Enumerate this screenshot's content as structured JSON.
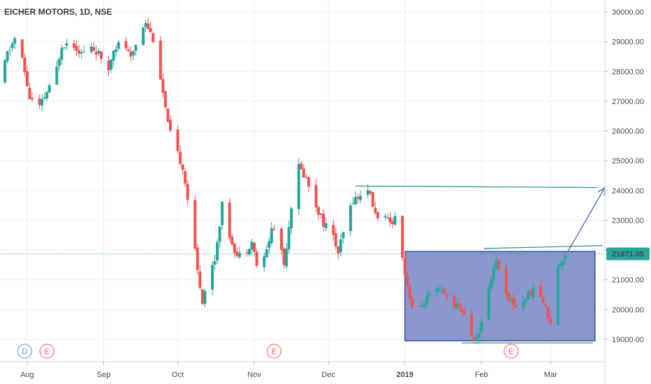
{
  "title": "EICHER MOTORS, 1D, NSE",
  "colors": {
    "up": "#26a69a",
    "down": "#ef5350",
    "box_fill": "#5b6fb8",
    "box_stroke": "#1f2f8f",
    "trend": "#2e9c8f",
    "arrow": "#5a78b8",
    "price_line": "#2e9c8f",
    "grid": "#eef0f3",
    "axis_text": "#4a4a4a",
    "badge_dividend": "#4a90c2",
    "badge_earnings": "#e85a5a"
  },
  "price_label": {
    "text": "21871.05",
    "value": 21871.05
  },
  "badges": [
    {
      "letter": "D",
      "type": "dividend",
      "date": "2018-07-31"
    },
    {
      "letter": "E",
      "type": "earnings",
      "date": "2018-08-09"
    },
    {
      "letter": "E",
      "type": "earnings",
      "date": "2018-11-09"
    },
    {
      "letter": "E",
      "type": "earnings",
      "date": "2019-02-13"
    }
  ],
  "chart_data": {
    "type": "candlestick",
    "title": "EICHER MOTORS, 1D, NSE",
    "ylim": [
      18300,
      30400
    ],
    "yticks": [
      19000,
      20000,
      21000,
      22000,
      23000,
      24000,
      25000,
      26000,
      27000,
      28000,
      29000,
      30000
    ],
    "ytick_labels": [
      "19000.00",
      "20000.00",
      "21000.00",
      "22000.00",
      "23000.00",
      "24000.00",
      "25000.00",
      "26000.00",
      "27000.00",
      "28000.00",
      "29000.00",
      "30000.00"
    ],
    "xlim": [
      "2018-07-21",
      "2019-03-23"
    ],
    "x_ticks": [
      {
        "date": "2018-08-01",
        "label": "Aug",
        "bold": false
      },
      {
        "date": "2018-09-01",
        "label": "Sep",
        "bold": false
      },
      {
        "date": "2018-10-01",
        "label": "Oct",
        "bold": false
      },
      {
        "date": "2018-11-01",
        "label": "Nov",
        "bold": false
      },
      {
        "date": "2018-12-01",
        "label": "Dec",
        "bold": false
      },
      {
        "date": "2019-01-01",
        "label": "2019",
        "bold": true
      },
      {
        "date": "2019-02-01",
        "label": "Feb",
        "bold": false
      },
      {
        "date": "2019-03-01",
        "label": "Mar",
        "bold": false
      }
    ],
    "last_price": 21871.05,
    "anchors": [
      [
        "2018-07-21",
        27600
      ],
      [
        "2018-07-24",
        28600
      ],
      [
        "2018-07-27",
        29100
      ],
      [
        "2018-07-30",
        28400
      ],
      [
        "2018-08-02",
        27100
      ],
      [
        "2018-08-06",
        26800
      ],
      [
        "2018-08-09",
        27300
      ],
      [
        "2018-08-12",
        27700
      ],
      [
        "2018-08-15",
        28900
      ],
      [
        "2018-08-19",
        29000
      ],
      [
        "2018-08-23",
        28600
      ],
      [
        "2018-08-27",
        28800
      ],
      [
        "2018-08-30",
        28600
      ],
      [
        "2018-09-02",
        27700
      ],
      [
        "2018-09-05",
        28800
      ],
      [
        "2018-09-09",
        29000
      ],
      [
        "2018-09-12",
        28400
      ],
      [
        "2018-09-15",
        29200
      ],
      [
        "2018-09-18",
        29700
      ],
      [
        "2018-09-21",
        29100
      ],
      [
        "2018-09-24",
        27800
      ],
      [
        "2018-09-27",
        26200
      ],
      [
        "2018-09-30",
        25400
      ],
      [
        "2018-10-03",
        24800
      ],
      [
        "2018-10-06",
        23200
      ],
      [
        "2018-10-09",
        21300
      ],
      [
        "2018-10-11",
        20300
      ],
      [
        "2018-10-13",
        21000
      ],
      [
        "2018-10-16",
        21700
      ],
      [
        "2018-10-19",
        23500
      ],
      [
        "2018-10-22",
        22500
      ],
      [
        "2018-10-25",
        21800
      ],
      [
        "2018-10-28",
        21900
      ],
      [
        "2018-10-31",
        22300
      ],
      [
        "2018-11-03",
        21100
      ],
      [
        "2018-11-06",
        22000
      ],
      [
        "2018-11-08",
        22700
      ],
      [
        "2018-11-11",
        22600
      ],
      [
        "2018-11-13",
        21500
      ],
      [
        "2018-11-16",
        23500
      ],
      [
        "2018-11-19",
        24800
      ],
      [
        "2018-11-22",
        24400
      ],
      [
        "2018-11-26",
        23500
      ],
      [
        "2018-11-29",
        22900
      ],
      [
        "2018-12-02",
        22700
      ],
      [
        "2018-12-05",
        21900
      ],
      [
        "2018-12-08",
        22900
      ],
      [
        "2018-12-11",
        23700
      ],
      [
        "2018-12-14",
        23800
      ],
      [
        "2018-12-17",
        24100
      ],
      [
        "2018-12-20",
        23200
      ],
      [
        "2018-12-23",
        23100
      ],
      [
        "2018-12-26",
        22900
      ],
      [
        "2018-12-29",
        23200
      ],
      [
        "2019-01-01",
        21200
      ],
      [
        "2019-01-04",
        20100
      ],
      [
        "2019-01-07",
        20000
      ],
      [
        "2019-01-10",
        20400
      ],
      [
        "2019-01-13",
        20600
      ],
      [
        "2019-01-16",
        20600
      ],
      [
        "2019-01-19",
        20300
      ],
      [
        "2019-01-22",
        20100
      ],
      [
        "2019-01-25",
        19900
      ],
      [
        "2019-01-28",
        19000
      ],
      [
        "2019-01-31",
        19100
      ],
      [
        "2019-02-02",
        20200
      ],
      [
        "2019-02-05",
        21100
      ],
      [
        "2019-02-07",
        21700
      ],
      [
        "2019-02-09",
        21000
      ],
      [
        "2019-02-12",
        20400
      ],
      [
        "2019-02-15",
        20100
      ],
      [
        "2019-02-18",
        20300
      ],
      [
        "2019-02-21",
        20600
      ],
      [
        "2019-02-24",
        20700
      ],
      [
        "2019-02-27",
        20000
      ],
      [
        "2019-03-01",
        19600
      ],
      [
        "2019-03-03",
        21200
      ],
      [
        "2019-03-05",
        21600
      ],
      [
        "2019-03-07",
        21871
      ]
    ],
    "annotations": {
      "rectangle": {
        "x0": "2019-01-01",
        "x1": "2019-03-19",
        "y0": 18950,
        "y1": 21950
      },
      "resistance_line": {
        "x0": "2018-12-12",
        "x1": "2019-03-20",
        "y0": 24150,
        "y1": 24100
      },
      "box_top_line": {
        "x0": "2019-02-02",
        "x1": "2019-03-22",
        "y0": 22050,
        "y1": 22150
      },
      "support_line": {
        "x0": "2019-01-24",
        "x1": "2019-03-18",
        "y0": 18880,
        "y1": 18880
      },
      "arrow": {
        "x0": "2019-03-08",
        "y0": 21950,
        "x1": "2019-03-23",
        "y1": 24100
      }
    }
  }
}
